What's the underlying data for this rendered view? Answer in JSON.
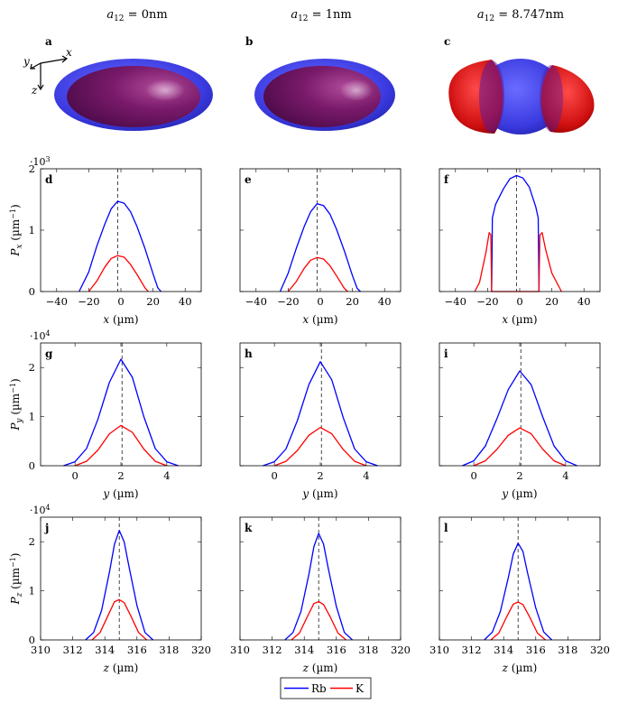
{
  "colors": {
    "rb": "#0000ff",
    "k": "#ff0000",
    "axis": "#000000",
    "center": "#333333"
  },
  "columns": [
    {
      "title_var": "a",
      "title_sub": "12",
      "title_value": " = 0nm"
    },
    {
      "title_var": "a",
      "title_sub": "12",
      "title_value": " = 1nm"
    },
    {
      "title_var": "a",
      "title_sub": "12",
      "title_value": " = 8.747nm"
    }
  ],
  "top_row": {
    "panels": [
      {
        "label": "a",
        "scene": "overlap"
      },
      {
        "label": "b",
        "scene": "overlap"
      },
      {
        "label": "c",
        "scene": "separated"
      }
    ],
    "axes_labels": {
      "x": "x",
      "y": "y",
      "z": "z"
    }
  },
  "legend": [
    {
      "name": "Rb",
      "color": "#0000ff"
    },
    {
      "name": "K",
      "color": "#ff0000"
    }
  ],
  "chart_data": [
    {
      "panel": "d",
      "type": "line",
      "row": "Px",
      "xlabel_var": "x",
      "xlabel_unit": " (µm)",
      "ylabel_var": "P",
      "ylabel_sub": "x",
      "ylabel_unit": " (µm",
      "ylabel_exp": "−1",
      "ylabel_close": ")",
      "multiplier_base": "·10",
      "multiplier_exp": "3",
      "xlim": [
        -50,
        50
      ],
      "ylim": [
        0,
        2000
      ],
      "xticks": [
        -40,
        -20,
        0,
        20,
        40
      ],
      "yticks": [
        0,
        1000,
        2000
      ],
      "yticklabels": [
        "0",
        "1",
        "2"
      ],
      "center_line": -2,
      "series": [
        {
          "name": "Rb",
          "x": [
            -26,
            -20,
            -15,
            -10,
            -6,
            -2,
            2,
            6,
            10,
            15,
            20,
            23,
            25
          ],
          "y": [
            0,
            320,
            740,
            1100,
            1350,
            1470,
            1440,
            1300,
            1060,
            700,
            290,
            60,
            0
          ]
        },
        {
          "name": "K",
          "x": [
            -20,
            -15,
            -10,
            -6,
            -2,
            2,
            6,
            10,
            15,
            17
          ],
          "y": [
            0,
            170,
            400,
            540,
            585,
            560,
            440,
            280,
            60,
            0
          ]
        }
      ]
    },
    {
      "panel": "e",
      "type": "line",
      "row": "Px",
      "xlabel_var": "x",
      "xlabel_unit": " (µm)",
      "xlim": [
        -50,
        50
      ],
      "ylim": [
        0,
        2000
      ],
      "xticks": [
        -40,
        -20,
        0,
        20,
        40
      ],
      "yticks": [
        0,
        1000,
        2000
      ],
      "center_line": -2,
      "series": [
        {
          "name": "Rb",
          "x": [
            -25,
            -20,
            -15,
            -10,
            -6,
            -2,
            2,
            6,
            10,
            15,
            20,
            23,
            25
          ],
          "y": [
            0,
            300,
            700,
            1060,
            1300,
            1430,
            1400,
            1260,
            1020,
            660,
            260,
            50,
            0
          ]
        },
        {
          "name": "K",
          "x": [
            -20,
            -15,
            -10,
            -6,
            -2,
            2,
            6,
            10,
            15,
            17
          ],
          "y": [
            0,
            160,
            380,
            510,
            555,
            530,
            420,
            260,
            50,
            0
          ]
        }
      ]
    },
    {
      "panel": "f",
      "type": "line",
      "row": "Px",
      "xlabel_var": "x",
      "xlabel_unit": " (µm)",
      "xlim": [
        -50,
        50
      ],
      "ylim": [
        0,
        2000
      ],
      "xticks": [
        -40,
        -20,
        0,
        20,
        40
      ],
      "yticks": [
        0,
        1000,
        2000
      ],
      "center_line": -2,
      "series": [
        {
          "name": "Rb",
          "x": [
            -17.5,
            -17,
            -15,
            -10,
            -6,
            -2,
            2,
            6,
            10,
            11.5,
            12
          ],
          "y": [
            0,
            1200,
            1420,
            1680,
            1840,
            1890,
            1850,
            1700,
            1380,
            1200,
            0
          ]
        },
        {
          "name": "K",
          "x": [
            -28,
            -25,
            -21,
            -19,
            -18,
            -17.5,
            12,
            12.5,
            14,
            16,
            20,
            26
          ],
          "y": [
            0,
            150,
            640,
            960,
            920,
            0,
            0,
            920,
            960,
            700,
            300,
            0
          ]
        }
      ]
    },
    {
      "panel": "g",
      "type": "line",
      "row": "Py",
      "xlabel_var": "y",
      "xlabel_unit": " (µm)",
      "ylabel_var": "P",
      "ylabel_sub": "y",
      "ylabel_unit": " (µm",
      "ylabel_exp": "−1",
      "ylabel_close": ")",
      "multiplier_base": "·10",
      "multiplier_exp": "4",
      "xlim": [
        -1.5,
        5.5
      ],
      "ylim": [
        0,
        25000
      ],
      "xticks": [
        0,
        2,
        4
      ],
      "yticks": [
        0,
        10000,
        20000
      ],
      "yticklabels": [
        "0",
        "1",
        "2"
      ],
      "center_line": 2.05,
      "series": [
        {
          "name": "Rb",
          "x": [
            -0.5,
            0,
            0.5,
            1,
            1.5,
            2,
            2.5,
            3,
            3.5,
            4,
            4.5
          ],
          "y": [
            0,
            800,
            3500,
            9500,
            17000,
            21700,
            18000,
            10000,
            3500,
            800,
            0
          ]
        },
        {
          "name": "K",
          "x": [
            0,
            0.5,
            1,
            1.5,
            2,
            2.5,
            3,
            3.5,
            4
          ],
          "y": [
            0,
            900,
            3200,
            6500,
            8200,
            6800,
            3400,
            900,
            0
          ]
        }
      ]
    },
    {
      "panel": "h",
      "type": "line",
      "row": "Py",
      "xlabel_var": "y",
      "xlabel_unit": " (µm)",
      "xlim": [
        -1.5,
        5.5
      ],
      "ylim": [
        0,
        25000
      ],
      "xticks": [
        0,
        2,
        4
      ],
      "yticks": [
        0,
        10000,
        20000
      ],
      "center_line": 2.05,
      "series": [
        {
          "name": "Rb",
          "x": [
            -0.5,
            0,
            0.5,
            1,
            1.5,
            2,
            2.5,
            3,
            3.5,
            4,
            4.5
          ],
          "y": [
            0,
            800,
            3400,
            9200,
            16500,
            21200,
            17500,
            9800,
            3400,
            800,
            0
          ]
        },
        {
          "name": "K",
          "x": [
            0,
            0.5,
            1,
            1.5,
            2,
            2.5,
            3,
            3.5,
            4
          ],
          "y": [
            0,
            900,
            3100,
            6200,
            7800,
            6500,
            3300,
            900,
            0
          ]
        }
      ]
    },
    {
      "panel": "i",
      "type": "line",
      "row": "Py",
      "xlabel_var": "y",
      "xlabel_unit": " (µm)",
      "xlim": [
        -1.5,
        5.5
      ],
      "ylim": [
        0,
        25000
      ],
      "xticks": [
        0,
        2,
        4
      ],
      "yticks": [
        0,
        10000,
        20000
      ],
      "center_line": 2.05,
      "series": [
        {
          "name": "Rb",
          "x": [
            -0.5,
            0,
            0.5,
            1,
            1.5,
            2,
            2.5,
            3,
            3.5,
            4,
            4.5
          ],
          "y": [
            0,
            1000,
            4000,
            9500,
            15500,
            19300,
            16500,
            10000,
            4000,
            1000,
            0
          ]
        },
        {
          "name": "K",
          "x": [
            0,
            0.5,
            1,
            1.5,
            2,
            2.5,
            3,
            3.5,
            4
          ],
          "y": [
            0,
            1000,
            3300,
            6200,
            7700,
            6500,
            3400,
            1000,
            0
          ]
        }
      ]
    },
    {
      "panel": "j",
      "type": "line",
      "row": "Pz",
      "xlabel_var": "z",
      "xlabel_unit": " (µm)",
      "ylabel_var": "P",
      "ylabel_sub": "z",
      "ylabel_unit": " (µm",
      "ylabel_exp": "−1",
      "ylabel_close": ")",
      "multiplier_base": "·10",
      "multiplier_exp": "4",
      "xlim": [
        310,
        320
      ],
      "ylim": [
        0,
        25000
      ],
      "xticks": [
        310,
        312,
        314,
        316,
        318,
        320
      ],
      "yticks": [
        0,
        10000,
        20000
      ],
      "yticklabels": [
        "0",
        "1",
        "2"
      ],
      "center_line": 314.9,
      "series": [
        {
          "name": "Rb",
          "x": [
            312.8,
            313.3,
            313.8,
            314.3,
            314.6,
            314.9,
            315.2,
            315.5,
            316.0,
            316.5,
            317.0
          ],
          "y": [
            0,
            1500,
            6000,
            14000,
            19500,
            22300,
            20000,
            15000,
            7000,
            1500,
            0
          ]
        },
        {
          "name": "K",
          "x": [
            313.2,
            313.7,
            314.2,
            314.6,
            314.9,
            315.2,
            315.6,
            316.1,
            316.6
          ],
          "y": [
            0,
            1500,
            5000,
            7800,
            8200,
            7600,
            5000,
            1500,
            0
          ]
        }
      ]
    },
    {
      "panel": "k",
      "type": "line",
      "row": "Pz",
      "xlabel_var": "z",
      "xlabel_unit": " (µm)",
      "xlim": [
        310,
        320
      ],
      "ylim": [
        0,
        25000
      ],
      "xticks": [
        310,
        312,
        314,
        316,
        318,
        320
      ],
      "yticks": [
        0,
        10000,
        20000
      ],
      "center_line": 314.9,
      "series": [
        {
          "name": "Rb",
          "x": [
            312.8,
            313.3,
            313.8,
            314.3,
            314.6,
            314.9,
            315.2,
            315.5,
            316.0,
            316.5,
            317.0
          ],
          "y": [
            0,
            1500,
            5800,
            13500,
            19000,
            21700,
            19500,
            14500,
            6800,
            1500,
            0
          ]
        },
        {
          "name": "K",
          "x": [
            313.2,
            313.7,
            314.2,
            314.6,
            314.9,
            315.2,
            315.6,
            316.1,
            316.6
          ],
          "y": [
            0,
            1400,
            4800,
            7400,
            7800,
            7200,
            4800,
            1400,
            0
          ]
        }
      ]
    },
    {
      "panel": "l",
      "type": "line",
      "row": "Pz",
      "xlabel_var": "z",
      "xlabel_unit": " (µm)",
      "xlim": [
        310,
        320
      ],
      "ylim": [
        0,
        25000
      ],
      "xticks": [
        310,
        312,
        314,
        316,
        318,
        320
      ],
      "yticks": [
        0,
        10000,
        20000
      ],
      "center_line": 314.9,
      "series": [
        {
          "name": "Rb",
          "x": [
            312.8,
            313.3,
            313.8,
            314.3,
            314.6,
            314.9,
            315.2,
            315.5,
            316.0,
            316.5,
            317.0
          ],
          "y": [
            0,
            1600,
            5800,
            12800,
            17500,
            19700,
            18000,
            13500,
            6500,
            1600,
            0
          ]
        },
        {
          "name": "K",
          "x": [
            313.2,
            313.7,
            314.2,
            314.6,
            314.9,
            315.2,
            315.6,
            316.1,
            316.6
          ],
          "y": [
            0,
            1400,
            4800,
            7300,
            7700,
            7200,
            4800,
            1400,
            0
          ]
        }
      ]
    }
  ]
}
